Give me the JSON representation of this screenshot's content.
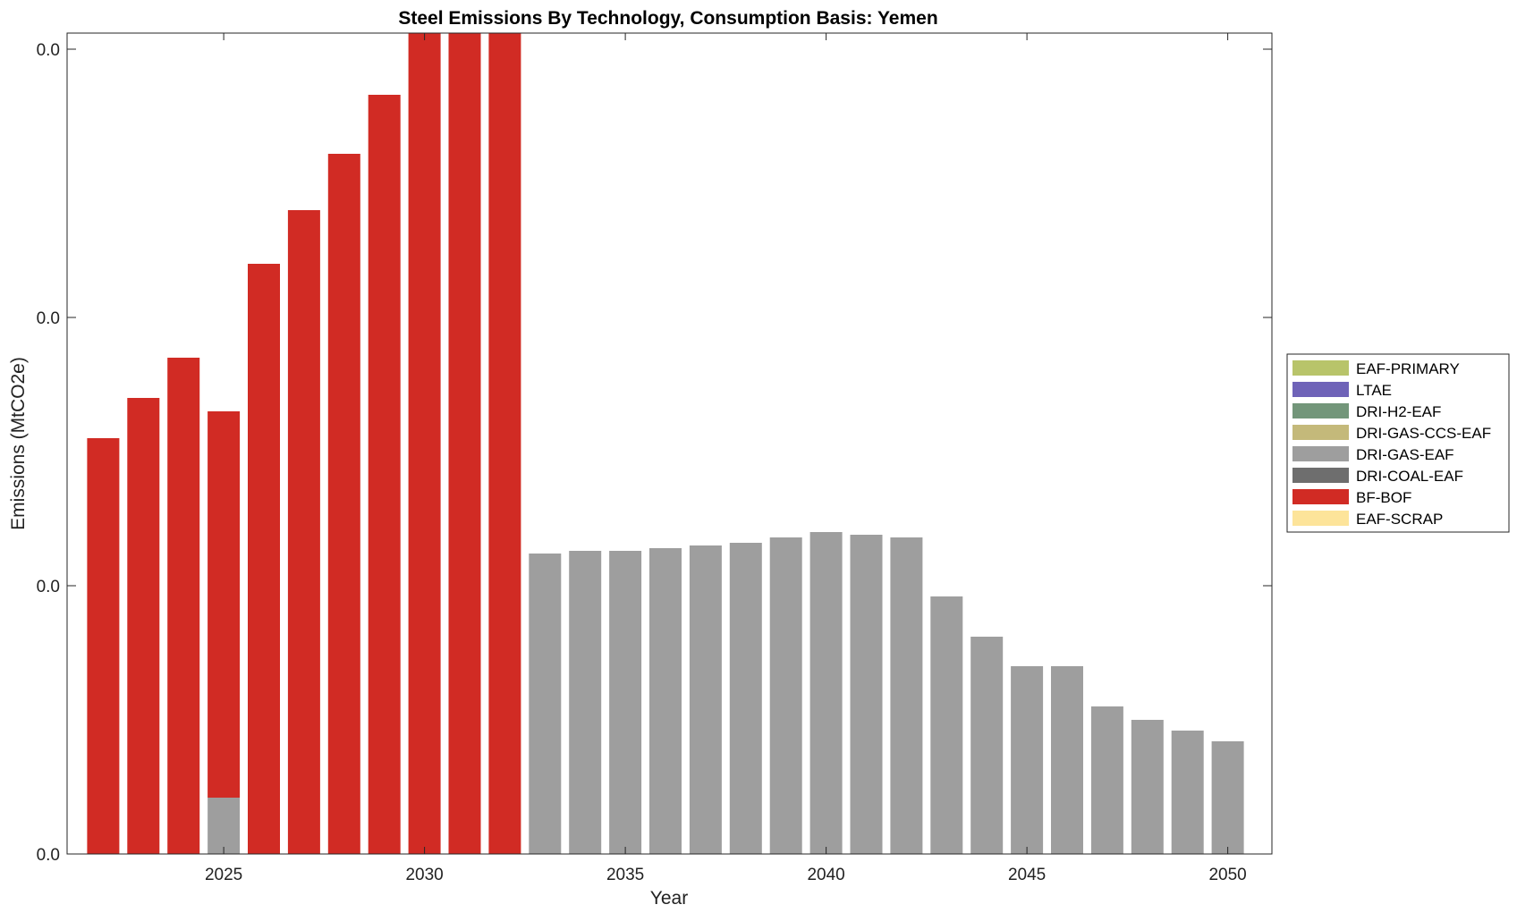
{
  "chart_data": {
    "type": "bar",
    "stacked": true,
    "title": "Steel Emissions By Technology, Consumption Basis: Yemen",
    "xlabel": "Year",
    "ylabel": "Emissions (MtCO2e)",
    "x": [
      2022,
      2023,
      2024,
      2025,
      2026,
      2027,
      2028,
      2029,
      2030,
      2031,
      2032,
      2033,
      2034,
      2035,
      2036,
      2037,
      2038,
      2039,
      2040,
      2041,
      2042,
      2043,
      2044,
      2045,
      2046,
      2047,
      2048,
      2049,
      2050
    ],
    "xticks": [
      2025,
      2030,
      2035,
      2040,
      2045,
      2050
    ],
    "xtick_labels": [
      "2025",
      "2030",
      "2035",
      "2040",
      "2045",
      "2050"
    ],
    "ylim": [
      0,
      0.0306
    ],
    "yticks": [
      0,
      0.01,
      0.02,
      0.03
    ],
    "ytick_labels": [
      "0.0",
      "0.0",
      "0.0",
      "0.0"
    ],
    "grid": false,
    "legend_position": "right",
    "series": [
      {
        "name": "EAF-PRIMARY",
        "color": "#b8c46a",
        "values": [
          0,
          0,
          0,
          0,
          0,
          0,
          0,
          0,
          0,
          0,
          0,
          0,
          0,
          0,
          0,
          0,
          0,
          0,
          0,
          0,
          0,
          0,
          0,
          0,
          0,
          0,
          0,
          0,
          0
        ]
      },
      {
        "name": "LTAE",
        "color": "#6f63b8",
        "values": [
          0,
          0,
          0,
          0,
          0,
          0,
          0,
          0,
          0,
          0,
          0,
          0,
          0,
          0,
          0,
          0,
          0,
          0,
          0,
          0,
          0,
          0,
          0,
          0,
          0,
          0,
          0,
          0,
          0
        ]
      },
      {
        "name": "DRI-H2-EAF",
        "color": "#73967a",
        "values": [
          0,
          0,
          0,
          0,
          0,
          0,
          0,
          0,
          0,
          0,
          0,
          0,
          0,
          0,
          0,
          0,
          0,
          0,
          0,
          0,
          0,
          0,
          0,
          0,
          0,
          0,
          0,
          0,
          0
        ]
      },
      {
        "name": "DRI-GAS-CCS-EAF",
        "color": "#c4b97a",
        "values": [
          0,
          0,
          0,
          0,
          0,
          0,
          0,
          0,
          0,
          0,
          0,
          0,
          0,
          0,
          0,
          0,
          0,
          0,
          0,
          0,
          0,
          0,
          0,
          0,
          0,
          0,
          0,
          0,
          0
        ]
      },
      {
        "name": "DRI-GAS-EAF",
        "color": "#9e9e9e",
        "values": [
          0,
          0,
          0,
          0.0021,
          0,
          0,
          0,
          0,
          0,
          0,
          0,
          0.0112,
          0.0113,
          0.0113,
          0.0114,
          0.0115,
          0.0116,
          0.0118,
          0.012,
          0.0119,
          0.0118,
          0.0096,
          0.0081,
          0.007,
          0.007,
          0.0055,
          0.005,
          0.0046,
          0.0042
        ]
      },
      {
        "name": "DRI-COAL-EAF",
        "color": "#6e6e6e",
        "values": [
          0,
          0,
          0,
          0,
          0,
          0,
          0,
          0,
          0,
          0,
          0,
          0,
          0,
          0,
          0,
          0,
          0,
          0,
          0,
          0,
          0,
          0,
          0,
          0,
          0,
          0,
          0,
          0,
          0
        ]
      },
      {
        "name": "BF-BOF",
        "color": "#d12b24",
        "values": [
          0.0155,
          0.017,
          0.0185,
          0.0144,
          0.022,
          0.024,
          0.0261,
          0.0283,
          0.0306,
          0.0306,
          0.0306,
          0,
          0,
          0,
          0,
          0,
          0,
          0,
          0,
          0,
          0,
          0,
          0,
          0,
          0,
          0,
          0,
          0,
          0
        ]
      },
      {
        "name": "EAF-SCRAP",
        "color": "#fde49a",
        "values": [
          0,
          0,
          0,
          0,
          0,
          0,
          0,
          0,
          0,
          0,
          0,
          0,
          0,
          0,
          0,
          0,
          0,
          0,
          0,
          0,
          0,
          0,
          0,
          0,
          0,
          0,
          0,
          0,
          0
        ]
      }
    ]
  }
}
